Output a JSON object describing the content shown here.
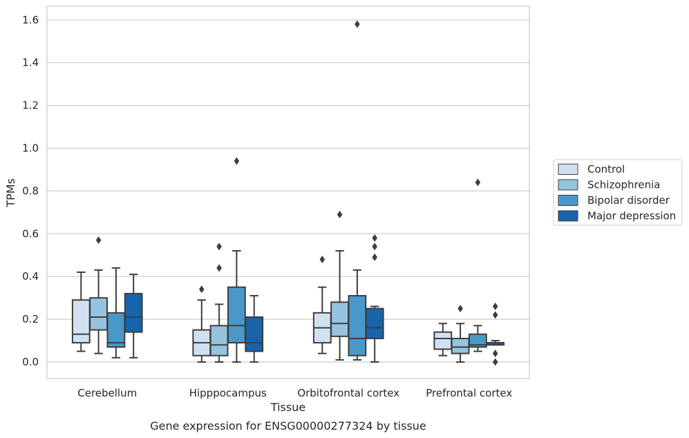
{
  "chart_data": {
    "type": "box",
    "xlabel": "Tissue",
    "ylabel": "TPMs",
    "caption": "Gene expression for ENSG00000277324 by tissue",
    "ylim": [
      -0.08,
      1.66
    ],
    "yticks": [
      0.0,
      0.2,
      0.4,
      0.6,
      0.8,
      1.0,
      1.2,
      1.4,
      1.6
    ],
    "ytick_labels": [
      "0.0",
      "0.2",
      "0.4",
      "0.6",
      "0.8",
      "1.0",
      "1.2",
      "1.4",
      "1.6"
    ],
    "grid": "horizontal",
    "legend_position": "right",
    "categories": [
      "Cerebellum",
      "Hipppocampus",
      "Orbitofrontal cortex",
      "Prefrontal cortex"
    ],
    "series": [
      {
        "name": "Control",
        "color": "#d0e1f2",
        "boxes": [
          {
            "whislo": 0.05,
            "q1": 0.09,
            "med": 0.13,
            "q3": 0.29,
            "whishi": 0.42,
            "fliers": []
          },
          {
            "whislo": 0.0,
            "q1": 0.03,
            "med": 0.09,
            "q3": 0.15,
            "whishi": 0.29,
            "fliers": [
              0.34
            ]
          },
          {
            "whislo": 0.04,
            "q1": 0.09,
            "med": 0.16,
            "q3": 0.23,
            "whishi": 0.35,
            "fliers": [
              0.48
            ]
          },
          {
            "whislo": 0.03,
            "q1": 0.06,
            "med": 0.11,
            "q3": 0.14,
            "whishi": 0.18,
            "fliers": []
          }
        ]
      },
      {
        "name": "Schizophrenia",
        "color": "#94c4df",
        "boxes": [
          {
            "whislo": 0.04,
            "q1": 0.15,
            "med": 0.21,
            "q3": 0.3,
            "whishi": 0.43,
            "fliers": [
              0.57
            ]
          },
          {
            "whislo": 0.0,
            "q1": 0.03,
            "med": 0.08,
            "q3": 0.17,
            "whishi": 0.27,
            "fliers": [
              0.44,
              0.54
            ]
          },
          {
            "whislo": 0.01,
            "q1": 0.12,
            "med": 0.18,
            "q3": 0.28,
            "whishi": 0.52,
            "fliers": [
              0.69
            ]
          },
          {
            "whislo": 0.0,
            "q1": 0.04,
            "med": 0.07,
            "q3": 0.11,
            "whishi": 0.18,
            "fliers": [
              0.25
            ]
          }
        ]
      },
      {
        "name": "Bipolar disorder",
        "color": "#4a98c9",
        "boxes": [
          {
            "whislo": 0.02,
            "q1": 0.07,
            "med": 0.09,
            "q3": 0.23,
            "whishi": 0.44,
            "fliers": []
          },
          {
            "whislo": 0.0,
            "q1": 0.09,
            "med": 0.17,
            "q3": 0.35,
            "whishi": 0.52,
            "fliers": [
              0.94
            ]
          },
          {
            "whislo": 0.01,
            "q1": 0.03,
            "med": 0.11,
            "q3": 0.31,
            "whishi": 0.43,
            "fliers": [
              1.58
            ]
          },
          {
            "whislo": 0.05,
            "q1": 0.07,
            "med": 0.08,
            "q3": 0.13,
            "whishi": 0.17,
            "fliers": [
              0.84
            ]
          }
        ]
      },
      {
        "name": "Major depression",
        "color": "#1764ab",
        "boxes": [
          {
            "whislo": 0.02,
            "q1": 0.14,
            "med": 0.21,
            "q3": 0.32,
            "whishi": 0.41,
            "fliers": []
          },
          {
            "whislo": 0.0,
            "q1": 0.05,
            "med": 0.09,
            "q3": 0.21,
            "whishi": 0.31,
            "fliers": []
          },
          {
            "whislo": 0.0,
            "q1": 0.11,
            "med": 0.16,
            "q3": 0.25,
            "whishi": 0.26,
            "fliers": [
              0.49,
              0.54,
              0.58
            ]
          },
          {
            "whislo": 0.08,
            "q1": 0.08,
            "med": 0.09,
            "q3": 0.09,
            "whishi": 0.1,
            "fliers": [
              0.0,
              0.04,
              0.22,
              0.26
            ]
          }
        ]
      }
    ]
  }
}
